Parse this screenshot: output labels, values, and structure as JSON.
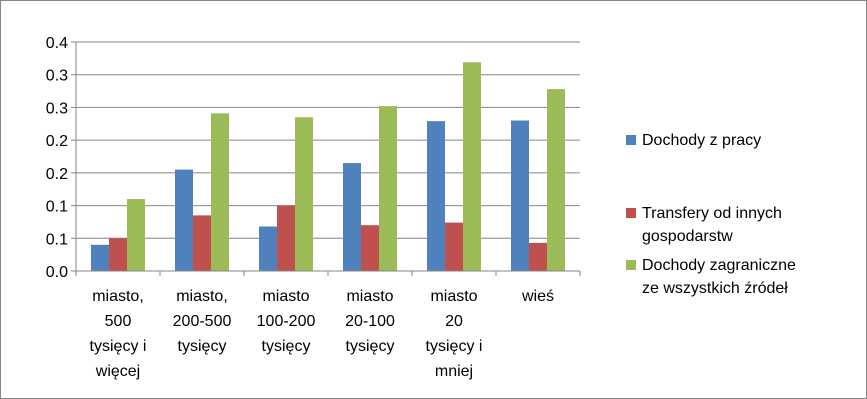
{
  "chart_data": {
    "type": "bar",
    "categories": [
      [
        "miasto,",
        "500",
        "tysięcy i",
        "więcej"
      ],
      [
        "miasto,",
        "200-500",
        "tysięcy"
      ],
      [
        "miasto",
        "100-200",
        "tysięcy"
      ],
      [
        "miasto",
        "20-100",
        "tysięcy"
      ],
      [
        "miasto",
        "20",
        "tysięcy i",
        "mniej"
      ],
      [
        "wieś"
      ]
    ],
    "series": [
      {
        "name": "Dochody z pracy",
        "color": "#4F81BD",
        "values": [
          0.04,
          0.155,
          0.068,
          0.165,
          0.229,
          0.23
        ]
      },
      {
        "name": "Transfery od innych gospodarstw",
        "legend_lines": [
          "Transfery od innych",
          "gospodarstw"
        ],
        "color": "#C0504D",
        "values": [
          0.05,
          0.085,
          0.1,
          0.07,
          0.074,
          0.043
        ]
      },
      {
        "name": "Dochody zagraniczne ze wszystkich źródeł",
        "legend_lines": [
          "Dochody zagraniczne",
          "ze wszystkich źródeł"
        ],
        "color": "#9BBB59",
        "values": [
          0.11,
          0.241,
          0.235,
          0.252,
          0.319,
          0.278
        ]
      }
    ],
    "y_tick_labels": [
      "0.0",
      "0.1",
      "0.1",
      "0.2",
      "0.2",
      "0.3",
      "0.3",
      "0.4"
    ],
    "ylim": [
      0,
      0.35
    ],
    "grid": true,
    "legend_position": "right"
  }
}
